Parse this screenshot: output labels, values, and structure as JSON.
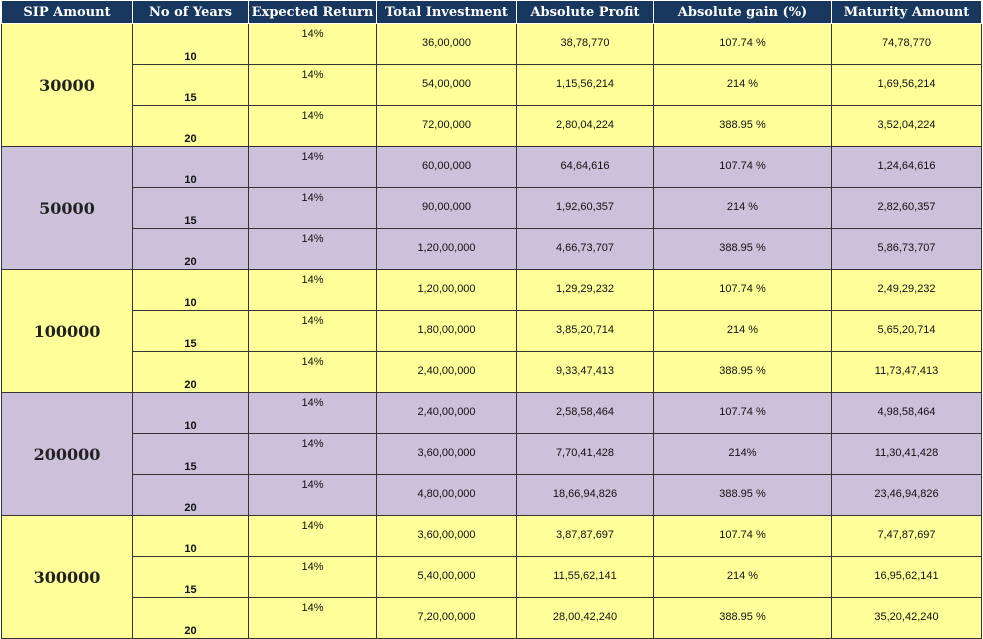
{
  "headers": [
    "SIP Amount",
    "No of Years",
    "Expected Return",
    "Total Investment",
    "Absolute Profit",
    "Absolute gain (%)",
    "Maturity Amount"
  ],
  "colors": {
    "header_bg": "#17375e",
    "header_text": "#ffffff",
    "yellow": "#ffff99",
    "purple": "#ccc0da"
  },
  "groups": [
    {
      "sip": "30000",
      "color": "yellow",
      "rows": [
        {
          "years": "10",
          "return": "14%",
          "investment": "36,00,000",
          "profit": "38,78,770",
          "gain": "107.74 %",
          "maturity": "74,78,770"
        },
        {
          "years": "15",
          "return": "14%",
          "investment": "54,00,000",
          "profit": "1,15,56,214",
          "gain": "214 %",
          "maturity": "1,69,56,214"
        },
        {
          "years": "20",
          "return": "14%",
          "investment": "72,00,000",
          "profit": "2,80,04,224",
          "gain": "388.95 %",
          "maturity": "3,52,04,224"
        }
      ]
    },
    {
      "sip": "50000",
      "color": "purple",
      "rows": [
        {
          "years": "10",
          "return": "14%",
          "investment": "60,00,000",
          "profit": "64,64,616",
          "gain": "107.74 %",
          "maturity": "1,24,64,616"
        },
        {
          "years": "15",
          "return": "14%",
          "investment": "90,00,000",
          "profit": "1,92,60,357",
          "gain": "214 %",
          "maturity": "2,82,60,357"
        },
        {
          "years": "20",
          "return": "14%",
          "investment": "1,20,00,000",
          "profit": "4,66,73,707",
          "gain": "388.95 %",
          "maturity": "5,86,73,707"
        }
      ]
    },
    {
      "sip": "100000",
      "color": "yellow",
      "rows": [
        {
          "years": "10",
          "return": "14%",
          "investment": "1,20,00,000",
          "profit": "1,29,29,232",
          "gain": "107.74 %",
          "maturity": "2,49,29,232"
        },
        {
          "years": "15",
          "return": "14%",
          "investment": "1,80,00,000",
          "profit": "3,85,20,714",
          "gain": "214 %",
          "maturity": "5,65,20,714"
        },
        {
          "years": "20",
          "return": "14%",
          "investment": "2,40,00,000",
          "profit": "9,33,47,413",
          "gain": "388.95 %",
          "maturity": "11,73,47,413"
        }
      ]
    },
    {
      "sip": "200000",
      "color": "purple",
      "rows": [
        {
          "years": "10",
          "return": "14%",
          "investment": "2,40,00,000",
          "profit": "2,58,58,464",
          "gain": "107.74 %",
          "maturity": "4,98,58,464"
        },
        {
          "years": "15",
          "return": "14%",
          "investment": "3,60,00,000",
          "profit": "7,70,41,428",
          "gain": "214%",
          "maturity": "11,30,41,428"
        },
        {
          "years": "20",
          "return": "14%",
          "investment": "4,80,00,000",
          "profit": "18,66,94,826",
          "gain": "388.95 %",
          "maturity": "23,46,94,826"
        }
      ]
    },
    {
      "sip": "300000",
      "color": "yellow",
      "rows": [
        {
          "years": "10",
          "return": "14%",
          "investment": "3,60,00,000",
          "profit": "3,87,87,697",
          "gain": "107.74 %",
          "maturity": "7,47,87,697"
        },
        {
          "years": "15",
          "return": "14%",
          "investment": "5,40,00,000",
          "profit": "11,55,62,141",
          "gain": "214 %",
          "maturity": "16,95,62,141"
        },
        {
          "years": "20",
          "return": "14%",
          "investment": "7,20,00,000",
          "profit": "28,00,42,240",
          "gain": "388.95 %",
          "maturity": "35,20,42,240"
        }
      ]
    }
  ]
}
